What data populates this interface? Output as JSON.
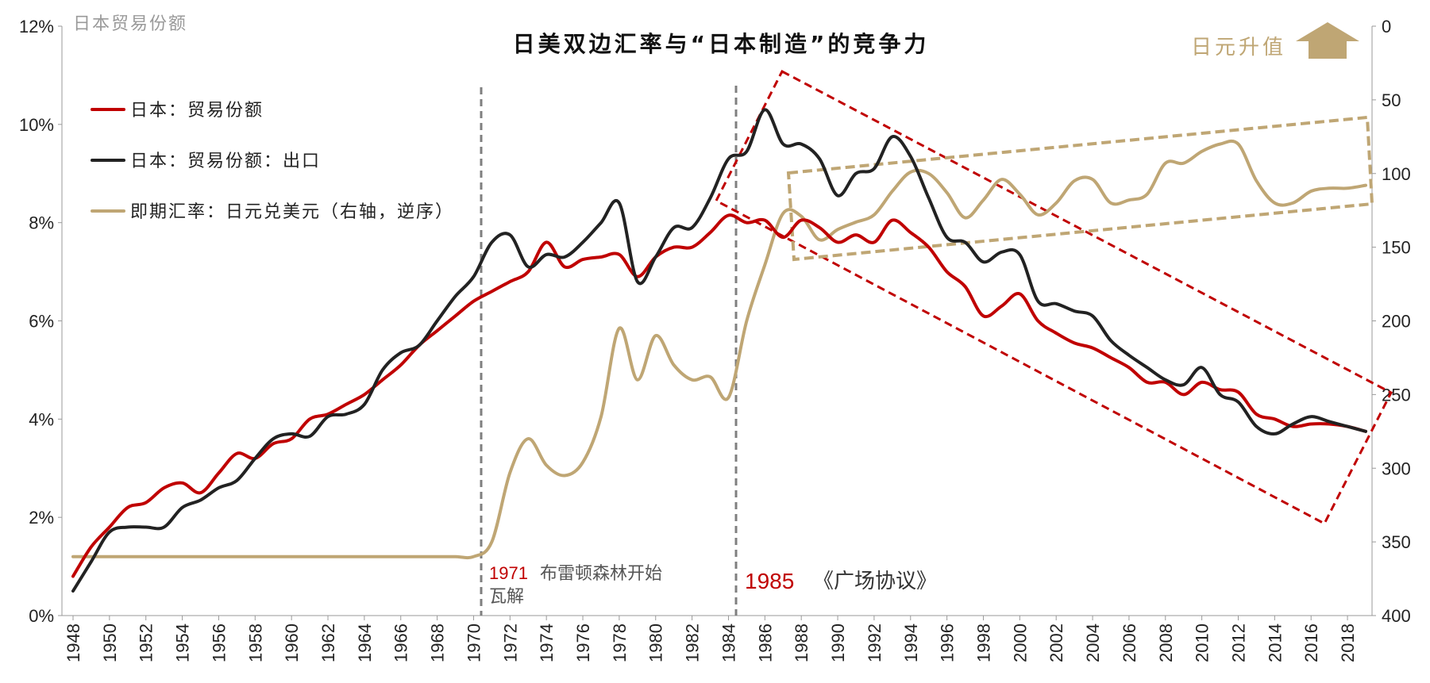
{
  "chart_data": {
    "type": "line",
    "title": "日美双边汇率与“日本制造”的竞争力",
    "ylabel_left": "日本贸易份额",
    "ylabel_right_note": "日元升值",
    "x": [
      1948,
      1949,
      1950,
      1951,
      1952,
      1953,
      1954,
      1955,
      1956,
      1957,
      1958,
      1959,
      1960,
      1961,
      1962,
      1963,
      1964,
      1965,
      1966,
      1967,
      1968,
      1969,
      1970,
      1971,
      1972,
      1973,
      1974,
      1975,
      1976,
      1977,
      1978,
      1979,
      1980,
      1981,
      1982,
      1983,
      1984,
      1985,
      1986,
      1987,
      1988,
      1989,
      1990,
      1991,
      1992,
      1993,
      1994,
      1995,
      1996,
      1997,
      1998,
      1999,
      2000,
      2001,
      2002,
      2003,
      2004,
      2005,
      2006,
      2007,
      2008,
      2009,
      2010,
      2011,
      2012,
      2013,
      2014,
      2015,
      2016,
      2017,
      2018,
      2019
    ],
    "x_ticks": [
      "1948",
      "1950",
      "1952",
      "1954",
      "1956",
      "1958",
      "1960",
      "1962",
      "1964",
      "1966",
      "1968",
      "1970",
      "1972",
      "1974",
      "1976",
      "1978",
      "1980",
      "1982",
      "1984",
      "1986",
      "1988",
      "1990",
      "1992",
      "1994",
      "1996",
      "1998",
      "2000",
      "2002",
      "2004",
      "2006",
      "2008",
      "2010",
      "2012",
      "2014",
      "2016",
      "2018"
    ],
    "y_left_ticks": [
      "0%",
      "2%",
      "4%",
      "6%",
      "8%",
      "10%",
      "12%"
    ],
    "y_left_range": [
      0,
      12
    ],
    "y_right_ticks": [
      "0",
      "50",
      "100",
      "150",
      "200",
      "250",
      "300",
      "350",
      "400"
    ],
    "y_right_range": [
      0,
      400
    ],
    "y_right_inverted": true,
    "grid": false,
    "legend_position": "top-left",
    "series": [
      {
        "name": "日本：贸易份额",
        "axis": "left",
        "color": "#c00000",
        "values": [
          0.8,
          1.4,
          1.8,
          2.2,
          2.3,
          2.6,
          2.7,
          2.5,
          2.9,
          3.3,
          3.2,
          3.5,
          3.6,
          4.0,
          4.1,
          4.3,
          4.5,
          4.8,
          5.1,
          5.5,
          5.8,
          6.1,
          6.4,
          6.6,
          6.8,
          7.0,
          7.6,
          7.1,
          7.25,
          7.3,
          7.35,
          6.9,
          7.3,
          7.5,
          7.5,
          7.8,
          8.15,
          8.0,
          8.05,
          7.7,
          8.05,
          7.9,
          7.6,
          7.75,
          7.6,
          8.05,
          7.8,
          7.5,
          7.0,
          6.7,
          6.1,
          6.3,
          6.55,
          6.0,
          5.75,
          5.55,
          5.45,
          5.25,
          5.05,
          4.75,
          4.75,
          4.5,
          4.75,
          4.6,
          4.55,
          4.1,
          4.0,
          3.85,
          3.9,
          3.9,
          3.85,
          3.75
        ]
      },
      {
        "name": "日本：贸易份额：出口",
        "axis": "left",
        "color": "#222222",
        "values": [
          0.5,
          1.1,
          1.7,
          1.8,
          1.8,
          1.8,
          2.2,
          2.35,
          2.6,
          2.75,
          3.2,
          3.6,
          3.7,
          3.65,
          4.05,
          4.1,
          4.3,
          5.0,
          5.35,
          5.5,
          6.0,
          6.5,
          6.9,
          7.6,
          7.75,
          7.1,
          7.35,
          7.3,
          7.6,
          8.0,
          8.4,
          6.8,
          7.3,
          7.9,
          7.9,
          8.5,
          9.3,
          9.45,
          10.3,
          9.6,
          9.6,
          9.3,
          8.55,
          9.0,
          9.1,
          9.75,
          9.35,
          8.5,
          7.7,
          7.6,
          7.2,
          7.4,
          7.35,
          6.4,
          6.35,
          6.2,
          6.1,
          5.6,
          5.3,
          5.05,
          4.8,
          4.7,
          5.05,
          4.5,
          4.35,
          3.85,
          3.7,
          3.9,
          4.05,
          3.95,
          3.85,
          3.75
        ]
      },
      {
        "name": "即期汇率：日元兑美元（右轴，逆序）",
        "axis": "right",
        "color": "#bfa674",
        "values": [
          360,
          360,
          360,
          360,
          360,
          360,
          360,
          360,
          360,
          360,
          360,
          360,
          360,
          360,
          360,
          360,
          360,
          360,
          360,
          360,
          360,
          360,
          360,
          350,
          303,
          280,
          298,
          305,
          296,
          265,
          205,
          240,
          210,
          230,
          240,
          238,
          252,
          200,
          162,
          127,
          129,
          145,
          138,
          133,
          128,
          112,
          99,
          100,
          113,
          130,
          118,
          104,
          114,
          128,
          120,
          105,
          104,
          120,
          118,
          114,
          93,
          93,
          85,
          80,
          80,
          105,
          120,
          120,
          112,
          110,
          110,
          108
        ]
      }
    ],
    "annotations": [
      {
        "year": "1971",
        "text": "布雷顿森林开始瓦解"
      },
      {
        "year": "1985",
        "text": "《广场协议》"
      }
    ]
  }
}
